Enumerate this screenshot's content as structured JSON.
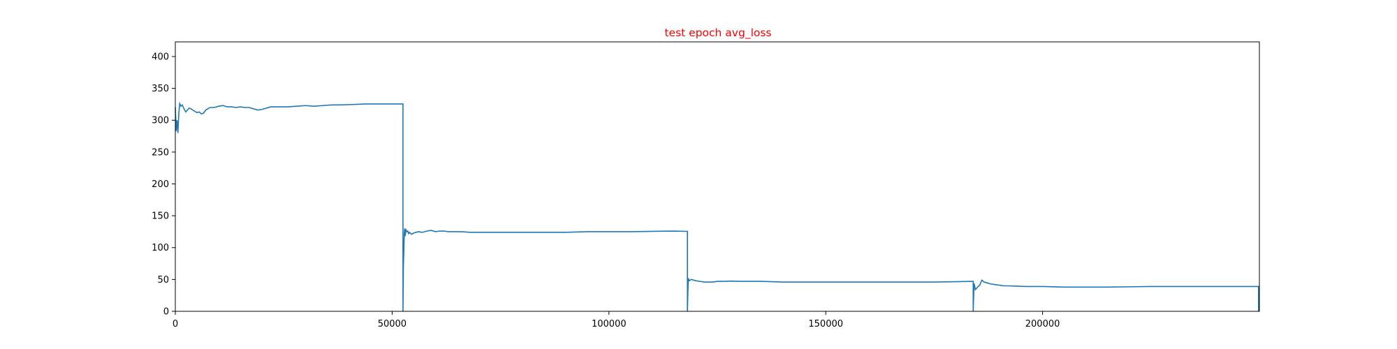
{
  "chart_data": {
    "type": "line",
    "title": "test epoch avg_loss",
    "title_color": "#ff0000",
    "line_color": "#1f77b4",
    "xlabel": "",
    "ylabel": "",
    "xlim": [
      0,
      250000
    ],
    "ylim": [
      0,
      423
    ],
    "grid": false,
    "xticks": [
      0,
      50000,
      100000,
      150000,
      200000
    ],
    "xtick_labels": [
      "0",
      "50000",
      "100000",
      "150000",
      "200000"
    ],
    "yticks": [
      0,
      50,
      100,
      150,
      200,
      250,
      300,
      350,
      400
    ],
    "ytick_labels": [
      "0",
      "50",
      "100",
      "150",
      "200",
      "250",
      "300",
      "350",
      "400"
    ],
    "series": [
      {
        "x": [
          0,
          200,
          400,
          600,
          800,
          1000,
          1300,
          1600,
          2000,
          2400,
          2800,
          3200,
          3600,
          4000,
          4500,
          5000,
          5500,
          6000,
          6500,
          7000,
          8000,
          9000,
          10000,
          11000,
          12000,
          13000,
          14000,
          15000,
          16000,
          17000,
          18000,
          19000,
          20000,
          21000,
          22000,
          24000,
          26000,
          28000,
          30000,
          32000,
          34000,
          36000,
          38000,
          40000,
          42000,
          44000,
          46000,
          48000,
          50000,
          52500,
          52500,
          52600,
          52700,
          52800,
          52900,
          53000,
          53200,
          53400,
          53600,
          53800,
          54000,
          54500,
          55000,
          56000,
          57000,
          58000,
          59000,
          60000,
          61000,
          62000,
          63000,
          64000,
          66000,
          68000,
          70000,
          72000,
          75000,
          80000,
          85000,
          90000,
          95000,
          100000,
          105000,
          110000,
          115000,
          118100,
          118100,
          118200,
          118300,
          118500,
          119000,
          120000,
          121000,
          122000,
          123000,
          124000,
          125000,
          126000,
          127000,
          128000,
          130000,
          135000,
          140000,
          145000,
          150000,
          155000,
          160000,
          165000,
          170000,
          175000,
          180000,
          184000,
          184000,
          184200,
          184500,
          185000,
          185500,
          186000,
          186500,
          187000,
          188000,
          189000,
          190000,
          191000,
          192000,
          194000,
          196000,
          198000,
          200000,
          205000,
          210000,
          215000,
          220000,
          225000,
          230000,
          235000,
          240000,
          245000,
          249800,
          249800
        ],
        "y": [
          320,
          283,
          300,
          280,
          310,
          326,
          322,
          324,
          318,
          313,
          316,
          319,
          318,
          316,
          314,
          312,
          313,
          310,
          311,
          316,
          320,
          320,
          322,
          323,
          321,
          321,
          320,
          321,
          320,
          320,
          318,
          316,
          317,
          319,
          321,
          321,
          321,
          322,
          323,
          322,
          323,
          324,
          324,
          324.5,
          325,
          325.5,
          325.5,
          325.5,
          325.5,
          325.5,
          0,
          72,
          95,
          122,
          130,
          118,
          128,
          125,
          126,
          122,
          124,
          121,
          123,
          125,
          124,
          126,
          127,
          125,
          126,
          126,
          125,
          125,
          125,
          124,
          124,
          124,
          124,
          124,
          124,
          124,
          125,
          125,
          125,
          125.5,
          126,
          125.5,
          0,
          28,
          52,
          48,
          50,
          48,
          47,
          46,
          46,
          46,
          47,
          47,
          47,
          47.5,
          47,
          47,
          46,
          46,
          46,
          46,
          46,
          46,
          46,
          46,
          46.5,
          47,
          0,
          44,
          34,
          38,
          41,
          49,
          46,
          45,
          43,
          42,
          41,
          40,
          40,
          39.5,
          39,
          39,
          39,
          38,
          38,
          38,
          38.5,
          39,
          39,
          39,
          39,
          39,
          39,
          0
        ]
      }
    ]
  }
}
